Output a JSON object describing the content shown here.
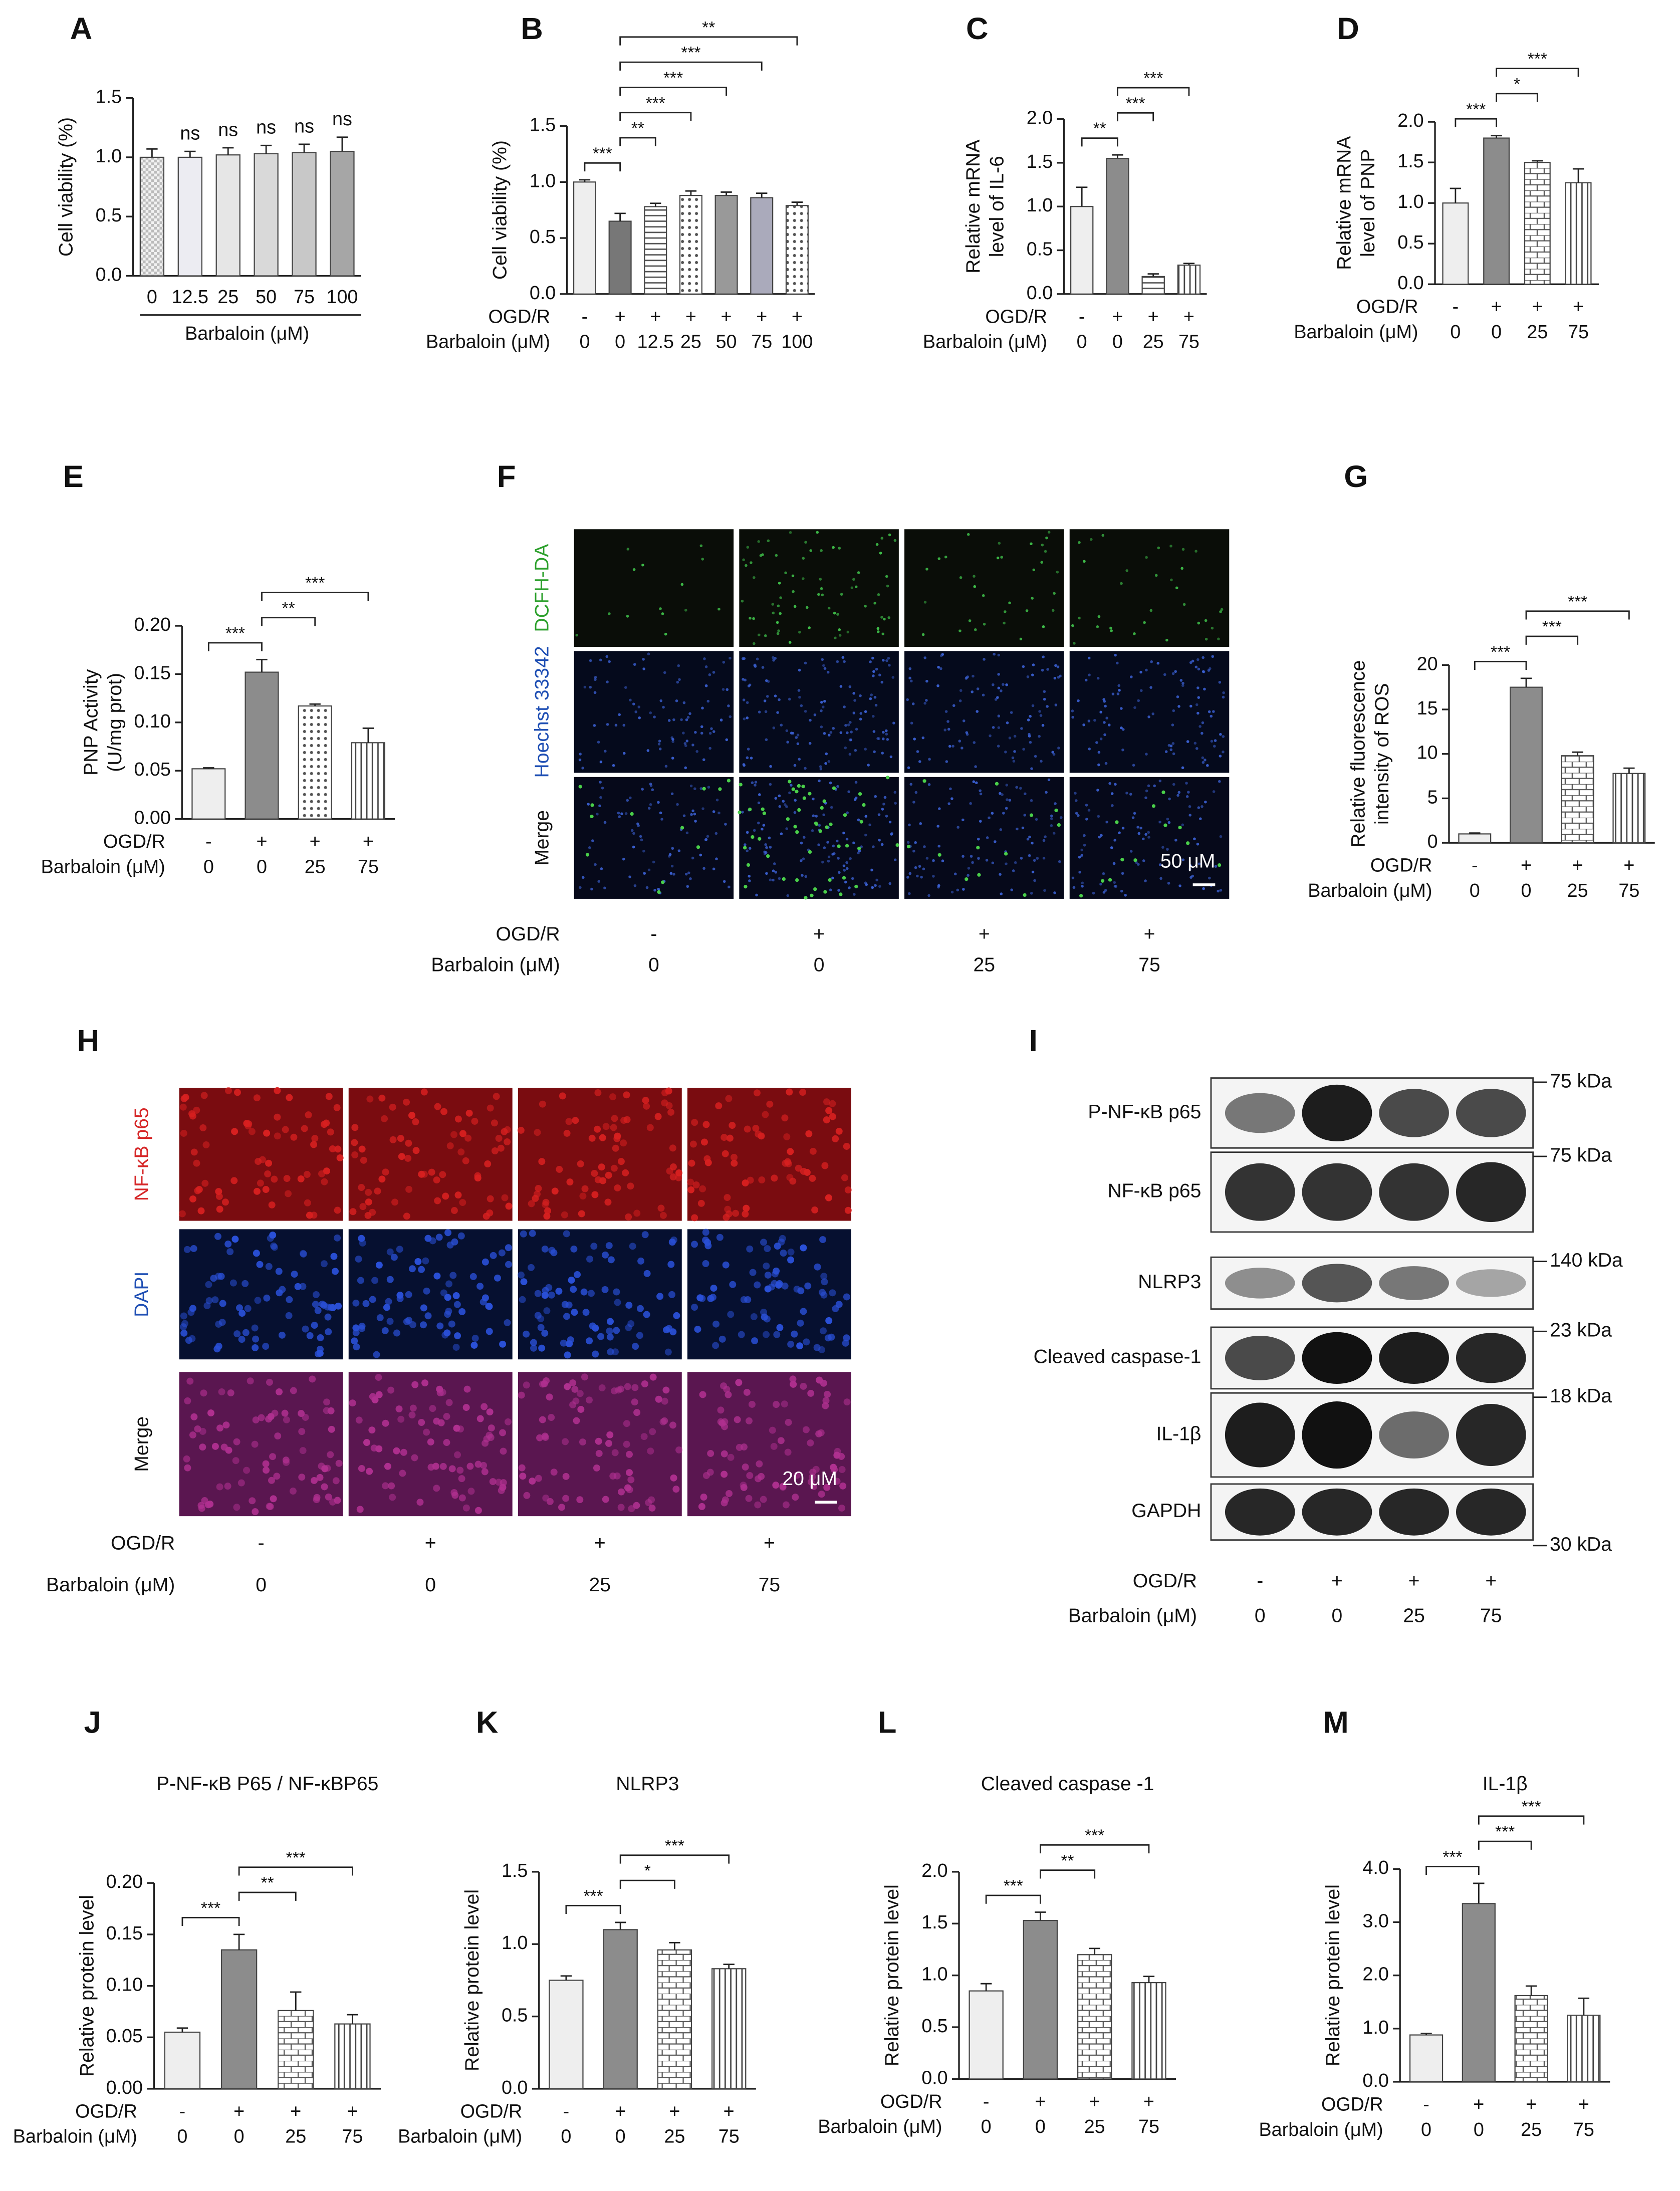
{
  "chart_data": [
    {
      "type": "bar",
      "panel": "A",
      "ylabel": [
        "Cell viability (%)"
      ],
      "categories": [
        "0",
        "12.5",
        "25",
        "50",
        "75",
        "100"
      ],
      "xlabel": "Barbaloin (μM)",
      "values": [
        1.0,
        1.0,
        1.02,
        1.03,
        1.04,
        1.05
      ],
      "errors": [
        0.07,
        0.05,
        0.06,
        0.07,
        0.07,
        0.12
      ],
      "colors": [
        "#f2f2f2",
        "#ececf2",
        "#e6e6e6",
        "#d9d9d9",
        "#c8c8c8",
        "#a6a6a6"
      ],
      "patterns": [
        "checker",
        "solid",
        "solid",
        "solid",
        "solid",
        "solid"
      ],
      "ylim": [
        0,
        1.5
      ],
      "yticks": [
        {
          "value": 0,
          "label": "0.0"
        },
        0.5,
        {
          "value": 1,
          "label": "1.0"
        },
        1.5
      ],
      "annotations": [
        {
          "bar": 1,
          "label": "ns"
        },
        {
          "bar": 2,
          "label": "ns"
        },
        {
          "bar": 3,
          "label": "ns"
        },
        {
          "bar": 4,
          "label": "ns"
        },
        {
          "bar": 5,
          "label": "ns"
        }
      ]
    },
    {
      "type": "bar",
      "panel": "B",
      "ylabel": [
        "Cell viability (%)"
      ],
      "ogdr": {
        "label": "OGD/R",
        "values": [
          "-",
          "+",
          "+",
          "+",
          "+",
          "+",
          "+"
        ]
      },
      "xlabel": "Barbaloin (μM)",
      "categories": [
        "0",
        "0",
        "12.5",
        "25",
        "50",
        "75",
        "100"
      ],
      "values": [
        1.0,
        0.65,
        0.78,
        0.88,
        0.88,
        0.86,
        0.79
      ],
      "errors": [
        0.02,
        0.07,
        0.03,
        0.04,
        0.03,
        0.04,
        0.03
      ],
      "colors": [
        "#eeeeee",
        "#777777",
        "#ffffff",
        "#ffffff",
        "#999999",
        "#aaaabb",
        "#ffffff"
      ],
      "patterns": [
        "solid",
        "solid",
        "hlines",
        "dots",
        "solid",
        "solid",
        "dots"
      ],
      "ylim": [
        0,
        1.5
      ],
      "yticks": [
        {
          "value": 0,
          "label": "0.0"
        },
        0.5,
        {
          "value": 1,
          "label": "1.0"
        },
        1.5
      ],
      "annotations": [
        {
          "pair": [
            0,
            1
          ],
          "label": "***"
        },
        {
          "pair": [
            1,
            2
          ],
          "label": "**"
        },
        {
          "pair": [
            1,
            3
          ],
          "label": "***"
        },
        {
          "pair": [
            1,
            4
          ],
          "label": "***"
        },
        {
          "pair": [
            1,
            5
          ],
          "label": "***"
        },
        {
          "pair": [
            1,
            6
          ],
          "label": "**"
        }
      ]
    },
    {
      "type": "bar",
      "panel": "C",
      "ylabel": [
        "Relative mRNA",
        "level of IL-6"
      ],
      "ogdr": {
        "label": "OGD/R",
        "values": [
          "-",
          "+",
          "+",
          "+"
        ]
      },
      "xlabel": "Barbaloin (μM)",
      "categories": [
        "0",
        "0",
        "25",
        "75"
      ],
      "values": [
        1.0,
        1.55,
        0.2,
        0.33
      ],
      "errors": [
        0.22,
        0.04,
        0.03,
        0.02
      ],
      "colors": [
        "#eeeeee",
        "#8c8c8c",
        "#ffffff",
        "#ffffff"
      ],
      "patterns": [
        "solid",
        "solid",
        "hlines",
        "vlines"
      ],
      "ylim": [
        0,
        2
      ],
      "yticks": [
        {
          "value": 0,
          "label": "0.0"
        },
        0.5,
        {
          "value": 1,
          "label": "1.0"
        },
        1.5,
        {
          "value": 2,
          "label": "2.0"
        }
      ],
      "annotations": [
        {
          "pair": [
            0,
            1
          ],
          "label": "**"
        },
        {
          "pair": [
            1,
            2
          ],
          "label": "***"
        },
        {
          "pair": [
            1,
            3
          ],
          "label": "***"
        }
      ]
    },
    {
      "type": "bar",
      "panel": "D",
      "ylabel": [
        "Relative mRNA",
        "level of PNP"
      ],
      "ogdr": {
        "label": "OGD/R",
        "values": [
          "-",
          "+",
          "+",
          "+"
        ]
      },
      "xlabel": "Barbaloin (μM)",
      "categories": [
        "0",
        "0",
        "25",
        "75"
      ],
      "values": [
        1.0,
        1.8,
        1.5,
        1.25
      ],
      "errors": [
        0.18,
        0.03,
        0.02,
        0.17
      ],
      "colors": [
        "#eeeeee",
        "#8c8c8c",
        "#ffffff",
        "#ffffff"
      ],
      "patterns": [
        "solid",
        "solid",
        "brick",
        "vlines"
      ],
      "ylim": [
        0,
        2
      ],
      "yticks": [
        {
          "value": 0,
          "label": "0.0"
        },
        0.5,
        {
          "value": 1,
          "label": "1.0"
        },
        1.5,
        {
          "value": 2,
          "label": "2.0"
        }
      ],
      "annotations": [
        {
          "pair": [
            0,
            1
          ],
          "label": "***"
        },
        {
          "pair": [
            1,
            2
          ],
          "label": "*"
        },
        {
          "pair": [
            1,
            3
          ],
          "label": "***"
        }
      ]
    },
    {
      "type": "bar",
      "panel": "E",
      "ylabel": [
        "PNP Activity",
        "(U/mg prot)"
      ],
      "ogdr": {
        "label": "OGD/R",
        "values": [
          "-",
          "+",
          "+",
          "+"
        ]
      },
      "xlabel": "Barbaloin (μM)",
      "categories": [
        "0",
        "0",
        "25",
        "75"
      ],
      "values": [
        0.052,
        0.152,
        0.117,
        0.079
      ],
      "errors": [
        0.001,
        0.013,
        0.002,
        0.015
      ],
      "colors": [
        "#eeeeee",
        "#8c8c8c",
        "#ffffff",
        "#ffffff"
      ],
      "patterns": [
        "solid",
        "solid",
        "dots",
        "vlines"
      ],
      "ylim": [
        0,
        0.2
      ],
      "yticks": [
        {
          "value": 0,
          "label": "0.00"
        },
        0.05,
        {
          "value": 0.1,
          "label": "0.10"
        },
        0.15,
        {
          "value": 0.2,
          "label": "0.20"
        }
      ],
      "annotations": [
        {
          "pair": [
            0,
            1
          ],
          "label": "***"
        },
        {
          "pair": [
            1,
            2
          ],
          "label": "**"
        },
        {
          "pair": [
            1,
            3
          ],
          "label": "***"
        }
      ]
    },
    {
      "type": "bar",
      "panel": "G",
      "ylabel": [
        "Relative fluorescence",
        "intensity of ROS"
      ],
      "ogdr": {
        "label": "OGD/R",
        "values": [
          "-",
          "+",
          "+",
          "+"
        ]
      },
      "xlabel": "Barbaloin (μM)",
      "categories": [
        "0",
        "0",
        "25",
        "75"
      ],
      "values": [
        1.0,
        17.5,
        9.8,
        7.8
      ],
      "errors": [
        0.1,
        1.0,
        0.4,
        0.6
      ],
      "colors": [
        "#eeeeee",
        "#8c8c8c",
        "#ffffff",
        "#ffffff"
      ],
      "patterns": [
        "solid",
        "solid",
        "brick",
        "vlines"
      ],
      "ylim": [
        0,
        20
      ],
      "yticks": [
        0,
        5,
        10,
        15,
        20
      ],
      "annotations": [
        {
          "pair": [
            0,
            1
          ],
          "label": "***"
        },
        {
          "pair": [
            1,
            2
          ],
          "label": "***"
        },
        {
          "pair": [
            1,
            3
          ],
          "label": "***"
        }
      ]
    },
    {
      "type": "bar",
      "panel": "J",
      "title": "P-NF-κB P65 / NF-κBP65",
      "ylabel": [
        "Relative protein level"
      ],
      "ogdr": {
        "label": "OGD/R",
        "values": [
          "-",
          "+",
          "+",
          "+"
        ]
      },
      "xlabel": "Barbaloin (μM)",
      "categories": [
        "0",
        "0",
        "25",
        "75"
      ],
      "values": [
        0.055,
        0.135,
        0.076,
        0.063
      ],
      "errors": [
        0.004,
        0.015,
        0.018,
        0.009
      ],
      "colors": [
        "#eeeeee",
        "#8c8c8c",
        "#ffffff",
        "#ffffff"
      ],
      "patterns": [
        "solid",
        "solid",
        "brick",
        "vlines"
      ],
      "ylim": [
        0,
        0.2
      ],
      "yticks": [
        {
          "value": 0,
          "label": "0.00"
        },
        0.05,
        {
          "value": 0.1,
          "label": "0.10"
        },
        0.15,
        {
          "value": 0.2,
          "label": "0.20"
        }
      ],
      "annotations": [
        {
          "pair": [
            0,
            1
          ],
          "label": "***"
        },
        {
          "pair": [
            1,
            2
          ],
          "label": "**"
        },
        {
          "pair": [
            1,
            3
          ],
          "label": "***"
        }
      ]
    },
    {
      "type": "bar",
      "panel": "K",
      "title": "NLRP3",
      "ylabel": [
        "Relative protein level"
      ],
      "ogdr": {
        "label": "OGD/R",
        "values": [
          "-",
          "+",
          "+",
          "+"
        ]
      },
      "xlabel": "Barbaloin (μM)",
      "categories": [
        "0",
        "0",
        "25",
        "75"
      ],
      "values": [
        0.75,
        1.1,
        0.96,
        0.83
      ],
      "errors": [
        0.03,
        0.05,
        0.05,
        0.03
      ],
      "colors": [
        "#eeeeee",
        "#8c8c8c",
        "#ffffff",
        "#ffffff"
      ],
      "patterns": [
        "solid",
        "solid",
        "brick",
        "vlines"
      ],
      "ylim": [
        0,
        1.5
      ],
      "yticks": [
        {
          "value": 0,
          "label": "0.0"
        },
        0.5,
        {
          "value": 1,
          "label": "1.0"
        },
        1.5
      ],
      "annotations": [
        {
          "pair": [
            0,
            1
          ],
          "label": "***"
        },
        {
          "pair": [
            1,
            2
          ],
          "label": "*"
        },
        {
          "pair": [
            1,
            3
          ],
          "label": "***"
        }
      ]
    },
    {
      "type": "bar",
      "panel": "L",
      "title": "Cleaved caspase -1",
      "ylabel": [
        "Relative protein level"
      ],
      "ogdr": {
        "label": "OGD/R",
        "values": [
          "-",
          "+",
          "+",
          "+"
        ]
      },
      "xlabel": "Barbaloin (μM)",
      "categories": [
        "0",
        "0",
        "25",
        "75"
      ],
      "values": [
        0.85,
        1.53,
        1.2,
        0.93
      ],
      "errors": [
        0.07,
        0.08,
        0.06,
        0.06
      ],
      "colors": [
        "#eeeeee",
        "#8c8c8c",
        "#ffffff",
        "#ffffff"
      ],
      "patterns": [
        "solid",
        "solid",
        "brick",
        "vlines"
      ],
      "ylim": [
        0,
        2
      ],
      "yticks": [
        {
          "value": 0,
          "label": "0.0"
        },
        0.5,
        {
          "value": 1,
          "label": "1.0"
        },
        1.5,
        {
          "value": 2,
          "label": "2.0"
        }
      ],
      "annotations": [
        {
          "pair": [
            0,
            1
          ],
          "label": "***"
        },
        {
          "pair": [
            1,
            2
          ],
          "label": "**"
        },
        {
          "pair": [
            1,
            3
          ],
          "label": "***"
        }
      ]
    },
    {
      "type": "bar",
      "panel": "M",
      "title": "IL-1β",
      "ylabel": [
        "Relative protein level"
      ],
      "ogdr": {
        "label": "OGD/R",
        "values": [
          "-",
          "+",
          "+",
          "+"
        ]
      },
      "xlabel": "Barbaloin (μM)",
      "categories": [
        "0",
        "0",
        "25",
        "75"
      ],
      "values": [
        0.88,
        3.35,
        1.62,
        1.25
      ],
      "errors": [
        0.03,
        0.38,
        0.18,
        0.32
      ],
      "colors": [
        "#eeeeee",
        "#8c8c8c",
        "#ffffff",
        "#ffffff"
      ],
      "patterns": [
        "solid",
        "solid",
        "brick",
        "vlines"
      ],
      "ylim": [
        0,
        4
      ],
      "yticks": [
        {
          "value": 0,
          "label": "0.0"
        },
        {
          "value": 1,
          "label": "1.0"
        },
        {
          "value": 2,
          "label": "2.0"
        },
        {
          "value": 3,
          "label": "3.0"
        },
        {
          "value": 4,
          "label": "4.0"
        }
      ],
      "annotations": [
        {
          "pair": [
            0,
            1
          ],
          "label": "***"
        },
        {
          "pair": [
            1,
            2
          ],
          "label": "***"
        },
        {
          "pair": [
            1,
            3
          ],
          "label": "***"
        }
      ]
    }
  ],
  "images": [
    {
      "panel": "F",
      "rows": [
        "DCFH-DA",
        "Hoechst 33342",
        "Merge"
      ],
      "scale_bar": "50 μM",
      "ogdr": {
        "label": "OGD/R",
        "values": [
          "-",
          "+",
          "+",
          "+"
        ]
      },
      "barbaloin": {
        "label": "Barbaloin (μM)",
        "values": [
          "0",
          "0",
          "25",
          "75"
        ]
      }
    },
    {
      "panel": "H",
      "rows": [
        "NF-κB p65",
        "DAPI",
        "Merge"
      ],
      "scale_bar": "20 μM",
      "ogdr": {
        "label": "OGD/R",
        "values": [
          "-",
          "+",
          "+",
          "+"
        ]
      },
      "barbaloin": {
        "label": "Barbaloin (μM)",
        "values": [
          "0",
          "0",
          "25",
          "75"
        ]
      }
    }
  ],
  "blot": {
    "panel": "I",
    "bands": [
      "P-NF-κB p65",
      "NF-κB p65",
      "NLRP3",
      "Cleaved caspase-1",
      "IL-1β",
      "GAPDH"
    ],
    "markers": [
      "75 kDa",
      "75 kDa",
      "140 kDa",
      "23 kDa",
      "18 kDa",
      "30 kDa"
    ],
    "ogdr": {
      "label": "OGD/R",
      "values": [
        "-",
        "+",
        "+",
        "+"
      ]
    },
    "barbaloin": {
      "label": "Barbaloin (μM)",
      "values": [
        "0",
        "0",
        "25",
        "75"
      ]
    }
  }
}
